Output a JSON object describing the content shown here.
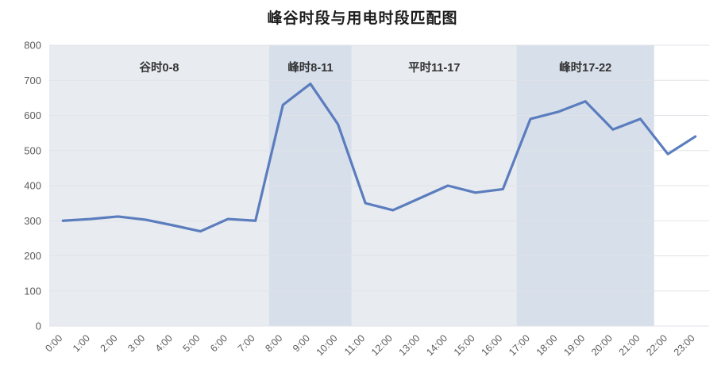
{
  "title": "峰谷时段与用电时段匹配图",
  "chart_data": {
    "type": "line",
    "title": "峰谷时段与用电时段匹配图",
    "x": [
      "0:00",
      "1:00",
      "2:00",
      "3:00",
      "4:00",
      "5:00",
      "6:00",
      "7:00",
      "8:00",
      "9:00",
      "10:00",
      "11:00",
      "12:00",
      "13:00",
      "14:00",
      "15:00",
      "16:00",
      "17:00",
      "18:00",
      "19:00",
      "20:00",
      "21:00",
      "22:00",
      "23:00"
    ],
    "values": [
      300,
      305,
      312,
      303,
      287,
      270,
      305,
      300,
      630,
      690,
      575,
      350,
      330,
      365,
      400,
      380,
      390,
      590,
      610,
      640,
      560,
      590,
      490,
      540
    ],
    "xlabel": "",
    "ylabel": "",
    "ylim": [
      0,
      800
    ],
    "ytick_interval": 100,
    "grid": true,
    "legend_position": "none",
    "line_color": "#5b7dbe",
    "grid_color": "#e0e3e8",
    "bands": [
      {
        "label": "谷时0-8",
        "from": 0,
        "to": 8,
        "color": "#e8ebf0"
      },
      {
        "label": "峰时8-11",
        "from": 8,
        "to": 11,
        "color": "#d7dfeb"
      },
      {
        "label": "平时11-17",
        "from": 11,
        "to": 17,
        "color": "#e8ebf0"
      },
      {
        "label": "峰时17-22",
        "from": 17,
        "to": 22,
        "color": "#d7dfeb"
      }
    ]
  }
}
